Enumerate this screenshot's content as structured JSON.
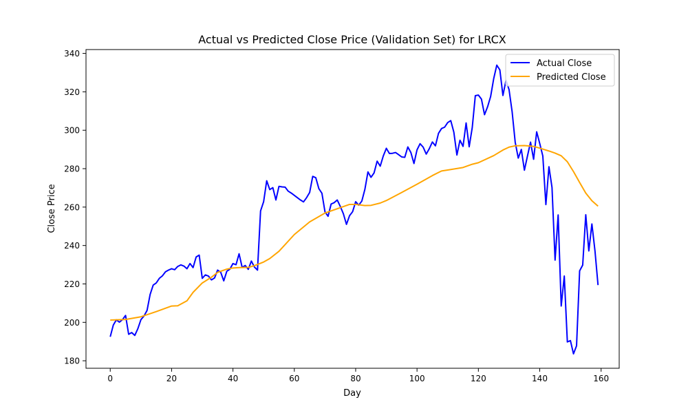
{
  "chart_data": {
    "type": "line",
    "title": "Actual vs Predicted Close Price (Validation Set) for LRCX",
    "xlabel": "Day",
    "ylabel": "Close Price",
    "xlim": [
      -7.9,
      165.9
    ],
    "ylim": [
      176.1,
      342.0
    ],
    "xticks": [
      0,
      20,
      40,
      60,
      80,
      100,
      120,
      140,
      160
    ],
    "yticks": [
      180,
      200,
      220,
      240,
      260,
      280,
      300,
      320,
      340
    ],
    "grid": false,
    "legend": "top-right",
    "series": [
      {
        "name": "Actual Close",
        "color": "#0000ff",
        "points": [
          [
            0,
            192.5
          ],
          [
            1,
            198.6
          ],
          [
            2,
            201.3
          ],
          [
            3,
            200.1
          ],
          [
            4,
            201.4
          ],
          [
            5,
            203.6
          ],
          [
            6,
            193.8
          ],
          [
            7,
            194.7
          ],
          [
            8,
            193.2
          ],
          [
            9,
            196.7
          ],
          [
            10,
            201.4
          ],
          [
            11,
            203.3
          ],
          [
            12,
            206.2
          ],
          [
            13,
            214.5
          ],
          [
            14,
            219.4
          ],
          [
            15,
            220.5
          ],
          [
            16,
            222.9
          ],
          [
            17,
            224.2
          ],
          [
            18,
            226.3
          ],
          [
            19,
            227.2
          ],
          [
            20,
            227.9
          ],
          [
            21,
            227.4
          ],
          [
            22,
            229.1
          ],
          [
            23,
            229.9
          ],
          [
            24,
            229.3
          ],
          [
            25,
            227.9
          ],
          [
            26,
            230.6
          ],
          [
            27,
            228.5
          ],
          [
            28,
            234.0
          ],
          [
            29,
            235.0
          ],
          [
            30,
            222.9
          ],
          [
            31,
            224.7
          ],
          [
            32,
            224.1
          ],
          [
            33,
            222.1
          ],
          [
            34,
            223.1
          ],
          [
            35,
            227.2
          ],
          [
            36,
            226.1
          ],
          [
            37,
            221.6
          ],
          [
            38,
            226.6
          ],
          [
            39,
            227.7
          ],
          [
            40,
            230.6
          ],
          [
            41,
            230.0
          ],
          [
            42,
            235.7
          ],
          [
            43,
            228.6
          ],
          [
            44,
            229.6
          ],
          [
            45,
            227.6
          ],
          [
            46,
            231.9
          ],
          [
            47,
            228.8
          ],
          [
            48,
            227.2
          ],
          [
            49,
            258.0
          ],
          [
            50,
            262.8
          ],
          [
            51,
            273.7
          ],
          [
            52,
            269.1
          ],
          [
            53,
            270.1
          ],
          [
            54,
            263.7
          ],
          [
            55,
            270.8
          ],
          [
            56,
            270.5
          ],
          [
            57,
            270.4
          ],
          [
            58,
            268.3
          ],
          [
            59,
            267.3
          ],
          [
            60,
            266.1
          ],
          [
            61,
            264.9
          ],
          [
            62,
            263.7
          ],
          [
            63,
            262.7
          ],
          [
            64,
            264.9
          ],
          [
            65,
            267.6
          ],
          [
            66,
            276.0
          ],
          [
            67,
            275.3
          ],
          [
            68,
            269.6
          ],
          [
            69,
            267.2
          ],
          [
            70,
            257.5
          ],
          [
            71,
            255.2
          ],
          [
            72,
            261.6
          ],
          [
            73,
            262.3
          ],
          [
            74,
            263.7
          ],
          [
            75,
            260.3
          ],
          [
            76,
            256.5
          ],
          [
            77,
            251.0
          ],
          [
            78,
            255.5
          ],
          [
            79,
            257.6
          ],
          [
            80,
            262.8
          ],
          [
            81,
            261.0
          ],
          [
            82,
            263.1
          ],
          [
            83,
            269.2
          ],
          [
            84,
            278.3
          ],
          [
            85,
            275.5
          ],
          [
            86,
            277.8
          ],
          [
            87,
            283.9
          ],
          [
            88,
            281.3
          ],
          [
            89,
            286.6
          ],
          [
            90,
            290.6
          ],
          [
            91,
            287.9
          ],
          [
            92,
            288.0
          ],
          [
            93,
            288.4
          ],
          [
            94,
            287.3
          ],
          [
            95,
            286.1
          ],
          [
            96,
            285.9
          ],
          [
            97,
            291.3
          ],
          [
            98,
            288.4
          ],
          [
            99,
            282.7
          ],
          [
            100,
            289.8
          ],
          [
            101,
            293.0
          ],
          [
            102,
            291.2
          ],
          [
            103,
            287.6
          ],
          [
            104,
            290.4
          ],
          [
            105,
            293.9
          ],
          [
            106,
            291.9
          ],
          [
            107,
            298.4
          ],
          [
            108,
            300.9
          ],
          [
            109,
            301.6
          ],
          [
            110,
            304.0
          ],
          [
            111,
            305.0
          ],
          [
            112,
            299.0
          ],
          [
            113,
            287.1
          ],
          [
            114,
            294.8
          ],
          [
            115,
            291.6
          ],
          [
            116,
            303.8
          ],
          [
            117,
            291.4
          ],
          [
            118,
            301.4
          ],
          [
            119,
            318.0
          ],
          [
            120,
            318.3
          ],
          [
            121,
            316.2
          ],
          [
            122,
            308.1
          ],
          [
            123,
            312.2
          ],
          [
            124,
            317.6
          ],
          [
            125,
            326.9
          ],
          [
            126,
            333.9
          ],
          [
            127,
            331.4
          ],
          [
            128,
            318.1
          ],
          [
            129,
            326.0
          ],
          [
            130,
            321.1
          ],
          [
            131,
            309.6
          ],
          [
            132,
            293.8
          ],
          [
            133,
            285.5
          ],
          [
            134,
            290.0
          ],
          [
            135,
            279.2
          ],
          [
            136,
            286.6
          ],
          [
            137,
            293.8
          ],
          [
            138,
            284.9
          ],
          [
            139,
            299.2
          ],
          [
            140,
            293.1
          ],
          [
            141,
            286.6
          ],
          [
            142,
            261.3
          ],
          [
            143,
            281.0
          ],
          [
            144,
            270.2
          ],
          [
            145,
            232.4
          ],
          [
            146,
            255.9
          ],
          [
            147,
            208.5
          ],
          [
            148,
            224.1
          ],
          [
            149,
            189.8
          ],
          [
            150,
            190.5
          ],
          [
            151,
            183.6
          ],
          [
            152,
            187.8
          ],
          [
            153,
            226.8
          ],
          [
            154,
            229.8
          ],
          [
            155,
            256.0
          ],
          [
            156,
            237.2
          ],
          [
            157,
            251.2
          ],
          [
            158,
            237.3
          ],
          [
            159,
            219.4
          ]
        ]
      },
      {
        "name": "Predicted Close",
        "color": "#ffa500",
        "points": [
          [
            0,
            201.2
          ],
          [
            5,
            201.5
          ],
          [
            10,
            202.9
          ],
          [
            15,
            205.6
          ],
          [
            20,
            208.5
          ],
          [
            22,
            208.6
          ],
          [
            25,
            211.2
          ],
          [
            27,
            215.6
          ],
          [
            30,
            220.5
          ],
          [
            33,
            223.5
          ],
          [
            35,
            226.0
          ],
          [
            38,
            227.7
          ],
          [
            40,
            228.3
          ],
          [
            42,
            228.5
          ],
          [
            45,
            228.6
          ],
          [
            47,
            229.5
          ],
          [
            50,
            231.4
          ],
          [
            52,
            233.2
          ],
          [
            55,
            237.0
          ],
          [
            60,
            245.7
          ],
          [
            65,
            252.3
          ],
          [
            70,
            256.9
          ],
          [
            75,
            259.7
          ],
          [
            78,
            261.4
          ],
          [
            80,
            261.4
          ],
          [
            83,
            260.8
          ],
          [
            85,
            260.9
          ],
          [
            88,
            262.1
          ],
          [
            90,
            263.4
          ],
          [
            95,
            267.6
          ],
          [
            100,
            271.9
          ],
          [
            105,
            276.4
          ],
          [
            108,
            278.8
          ],
          [
            110,
            279.3
          ],
          [
            115,
            280.6
          ],
          [
            118,
            282.3
          ],
          [
            120,
            283.1
          ],
          [
            125,
            286.8
          ],
          [
            128,
            289.7
          ],
          [
            130,
            291.2
          ],
          [
            132,
            291.9
          ],
          [
            135,
            292.0
          ],
          [
            138,
            291.6
          ],
          [
            140,
            290.7
          ],
          [
            143,
            289.2
          ],
          [
            145,
            288.1
          ],
          [
            147,
            286.7
          ],
          [
            149,
            283.6
          ],
          [
            151,
            278.5
          ],
          [
            153,
            272.8
          ],
          [
            155,
            267.3
          ],
          [
            157,
            263.3
          ],
          [
            159,
            260.5
          ]
        ]
      }
    ]
  }
}
